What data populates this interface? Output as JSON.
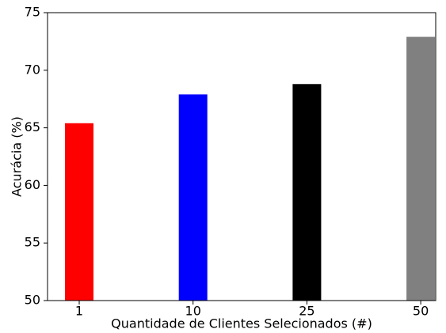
{
  "chart_data": {
    "type": "bar",
    "x_label": "Quantidade de Clientes Selecionados (#)",
    "y_label": "Acurácia (%)",
    "categories": [
      "1",
      "10",
      "25",
      "50"
    ],
    "values": [
      65.4,
      67.9,
      68.8,
      72.9
    ],
    "colors": [
      "#ff0000",
      "#0000ff",
      "#000000",
      "#808080"
    ],
    "ylim": [
      50,
      75
    ],
    "yticks": [
      50,
      55,
      60,
      65,
      70,
      75
    ],
    "grid": false
  }
}
